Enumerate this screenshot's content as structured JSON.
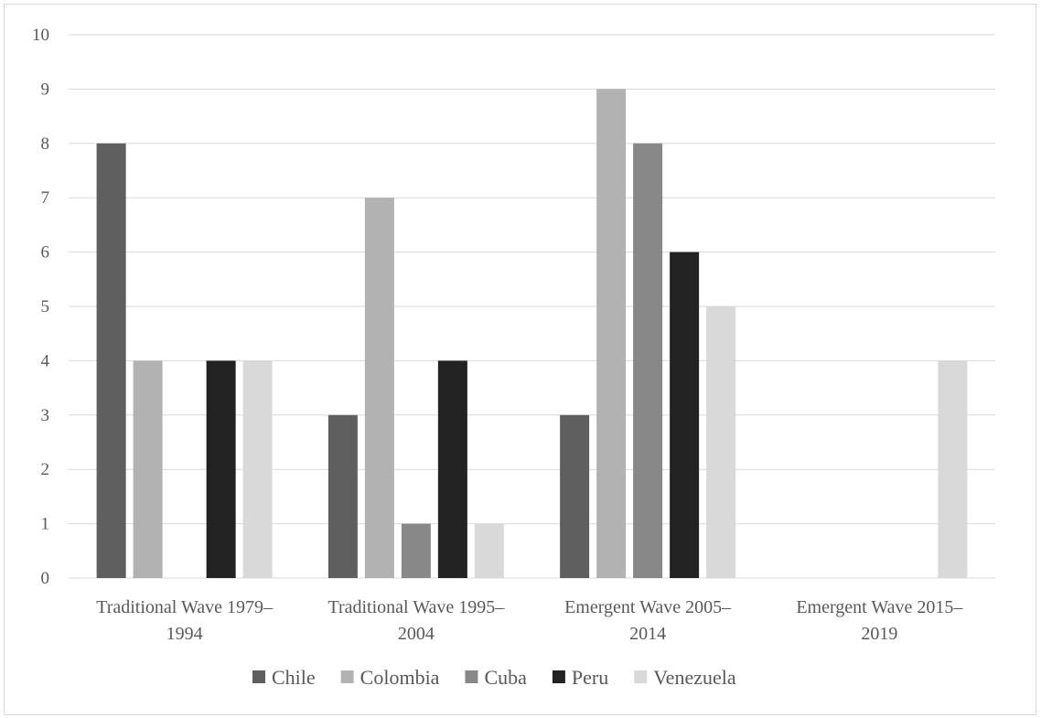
{
  "chart_data": {
    "type": "bar",
    "categories": [
      [
        "Traditional Wave 1979–",
        "1994"
      ],
      [
        "Traditional Wave 1995–",
        "2004"
      ],
      [
        "Emergent Wave 2005–",
        "2014"
      ],
      [
        "Emergent Wave 2015–",
        "2019"
      ]
    ],
    "series": [
      {
        "name": "Chile",
        "color": "#5f5f5f",
        "values": [
          8,
          3,
          3,
          0
        ]
      },
      {
        "name": "Colombia",
        "color": "#b2b2b2",
        "values": [
          4,
          7,
          9,
          0
        ]
      },
      {
        "name": "Cuba",
        "color": "#888888",
        "values": [
          0,
          1,
          8,
          0
        ]
      },
      {
        "name": "Peru",
        "color": "#222222",
        "values": [
          4,
          4,
          6,
          0
        ]
      },
      {
        "name": "Venezuela",
        "color": "#d9d9d9",
        "values": [
          4,
          1,
          5,
          4
        ]
      }
    ],
    "ylim": [
      0,
      10
    ],
    "yticks": [
      "0",
      "1",
      "2",
      "3",
      "4",
      "5",
      "6",
      "7",
      "8",
      "9",
      "10"
    ],
    "grid": true,
    "legend_position": "bottom"
  }
}
